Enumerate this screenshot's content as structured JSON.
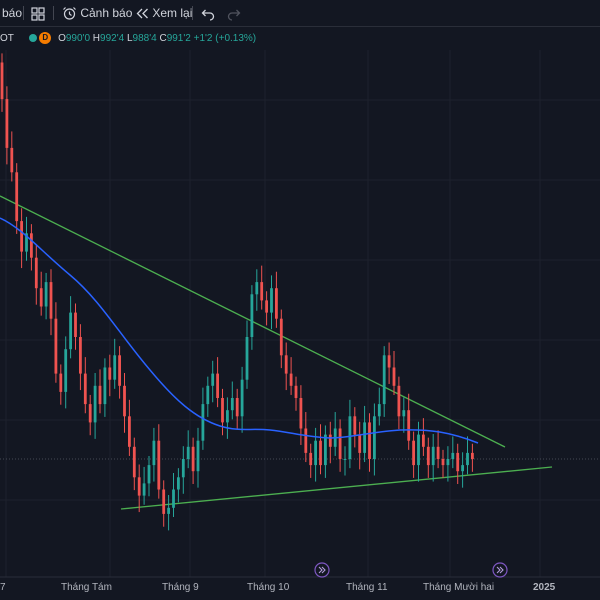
{
  "toolbar": {
    "alert_partial": "báo",
    "alert_label": "Cảnh báo",
    "replay_label": "Xem lại"
  },
  "legend": {
    "symbol_partial": "OT",
    "interval_badge": "D",
    "open_key": "O",
    "open_val": "990'0",
    "high_key": "H",
    "high_val": "992'4",
    "low_key": "L",
    "low_val": "988'4",
    "close_key": "C",
    "close_val": "991'2",
    "change": "+1'2 (+0.13%)"
  },
  "colors": {
    "background": "#131722",
    "up": "#26a69a",
    "down": "#ef5350",
    "ma": "#2962ff",
    "trendline": "#4caf50"
  },
  "x_axis": {
    "labels": [
      "7",
      "Tháng Tám",
      "Tháng 9",
      "Tháng 10",
      "Tháng 11",
      "Tháng Mười hai",
      "2025"
    ]
  },
  "chart_data": {
    "type": "candlestick",
    "title": "",
    "closes": [
      1050,
      1042,
      1038,
      1030,
      1025,
      1028,
      1024,
      1019,
      1016,
      1020,
      1014,
      1005,
      1002,
      1009,
      1015,
      1011,
      1005,
      1000,
      997,
      1003,
      1000,
      1006,
      1004,
      1008,
      1003,
      998,
      993,
      988,
      985,
      987,
      990,
      994,
      986,
      982,
      983,
      986,
      988,
      991,
      993,
      989,
      994,
      1000,
      1003,
      1005,
      1001,
      997,
      999,
      1001,
      998,
      1004,
      1011,
      1018,
      1020,
      1017,
      1015,
      1019,
      1014,
      1008,
      1005,
      1003,
      1001,
      996,
      992,
      990,
      994,
      990,
      995,
      993,
      996,
      991,
      991,
      998,
      995,
      992,
      997,
      991,
      998,
      1000,
      1008,
      1006,
      1003,
      998,
      999,
      994,
      990,
      995,
      993,
      990,
      993,
      991,
      990,
      991,
      992,
      989,
      990,
      992,
      991
    ]
  }
}
